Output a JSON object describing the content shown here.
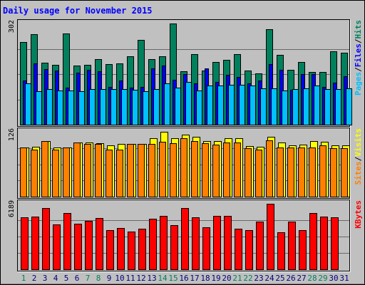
{
  "chart_data": {
    "type": "bar",
    "title": "Daily usage for November 2015",
    "categories": [
      "1",
      "2",
      "3",
      "4",
      "5",
      "6",
      "7",
      "8",
      "9",
      "10",
      "11",
      "12",
      "13",
      "14",
      "15",
      "16",
      "17",
      "18",
      "19",
      "20",
      "21",
      "22",
      "23",
      "24",
      "25",
      "26",
      "27",
      "28",
      "29",
      "30",
      "31"
    ],
    "weekend_days": [
      1,
      7,
      8,
      14,
      15,
      21,
      22,
      28,
      29
    ],
    "colors": {
      "hits": "#00805c",
      "files": "#0000ff",
      "pages": "#00c0ff",
      "visits": "#ffff00",
      "sites": "#ff8000",
      "kbytes": "#ff0000",
      "title": "#0000ff",
      "weekend_label": "#00805c",
      "weekday_label": "#000080",
      "background": "#c0c0c0"
    },
    "panels": [
      {
        "id": "hits-files-pages",
        "max_label": "302",
        "ymax": 302,
        "legend": [
          {
            "text": "Pages",
            "color": "#00c0ff"
          },
          {
            "text": "/",
            "color": "#000000"
          },
          {
            "text": "Files",
            "color": "#0000ff"
          },
          {
            "text": "/",
            "color": "#000000"
          },
          {
            "text": "Hits",
            "color": "#00805c"
          }
        ],
        "series": [
          {
            "name": "Hits",
            "color": "#00805c",
            "values": [
              246,
              271,
              185,
              178,
              272,
              177,
              178,
              195,
              181,
              182,
              205,
              254,
              196,
              205,
              302,
              159,
              211,
              162,
              188,
              193,
              211,
              162,
              153,
              284,
              208,
              164,
              187,
              157,
              157,
              218,
              215
            ]
          },
          {
            "name": "Files",
            "color": "#0000ff",
            "values": [
              132,
              182,
              165,
              162,
              110,
              155,
              163,
              159,
              112,
              131,
              111,
              112,
              167,
              176,
              135,
              150,
              123,
              167,
              127,
              148,
              143,
              123,
              131,
              181,
              163,
              104,
              150,
              150,
              113,
              125,
              145
            ]
          },
          {
            "name": "Pages",
            "color": "#00c0ff",
            "values": [
              124,
              99,
              107,
              103,
              102,
              101,
              106,
              107,
              106,
              107,
              104,
              101,
              107,
              123,
              110,
              127,
              102,
              117,
              116,
              120,
              119,
              116,
              108,
              108,
              102,
              107,
              108,
              118,
              106,
              106,
              108
            ]
          }
        ]
      },
      {
        "id": "visits-sites",
        "max_label": "126",
        "ymax": 126,
        "legend": [
          {
            "text": "Sites",
            "color": "#ff8000"
          },
          {
            "text": "/",
            "color": "#000000"
          },
          {
            "text": "Visits",
            "color": "#ffff00"
          }
        ],
        "series": [
          {
            "name": "Visits",
            "color": "#ffff00",
            "values": [
              95,
              97,
              108,
              96,
              96,
              105,
              105,
              104,
              100,
              103,
              103,
              102,
              114,
              126,
              113,
              120,
              116,
              108,
              108,
              114,
              113,
              98,
              97,
              116,
              105,
              99,
              101,
              108,
              106,
              100,
              99
            ]
          },
          {
            "name": "Sites",
            "color": "#ff8000",
            "values": [
              95,
              92,
              108,
              92,
              96,
              105,
              103,
              102,
              91,
              92,
              102,
              102,
              103,
              106,
              104,
              114,
              108,
              104,
              101,
              105,
              105,
              94,
              92,
              109,
              95,
              95,
              95,
              96,
              99,
              94,
              94
            ]
          }
        ]
      },
      {
        "id": "kbytes",
        "max_label": "6189",
        "ymax": 6189,
        "legend": [
          {
            "text": "KBytes",
            "color": "#ff0000"
          }
        ],
        "series": [
          {
            "name": "KBytes",
            "color": "#ff0000",
            "values": [
              4935,
              4970,
              5791,
              4256,
              5287,
              4337,
              4578,
              4825,
              3714,
              3886,
              3542,
              3845,
              4781,
              5063,
              4171,
              5779,
              4934,
              3972,
              5022,
              5020,
              3853,
              3709,
              4487,
              6189,
              3476,
              4522,
              3730,
              5323,
              4972,
              4922,
              null
            ]
          }
        ]
      }
    ]
  }
}
